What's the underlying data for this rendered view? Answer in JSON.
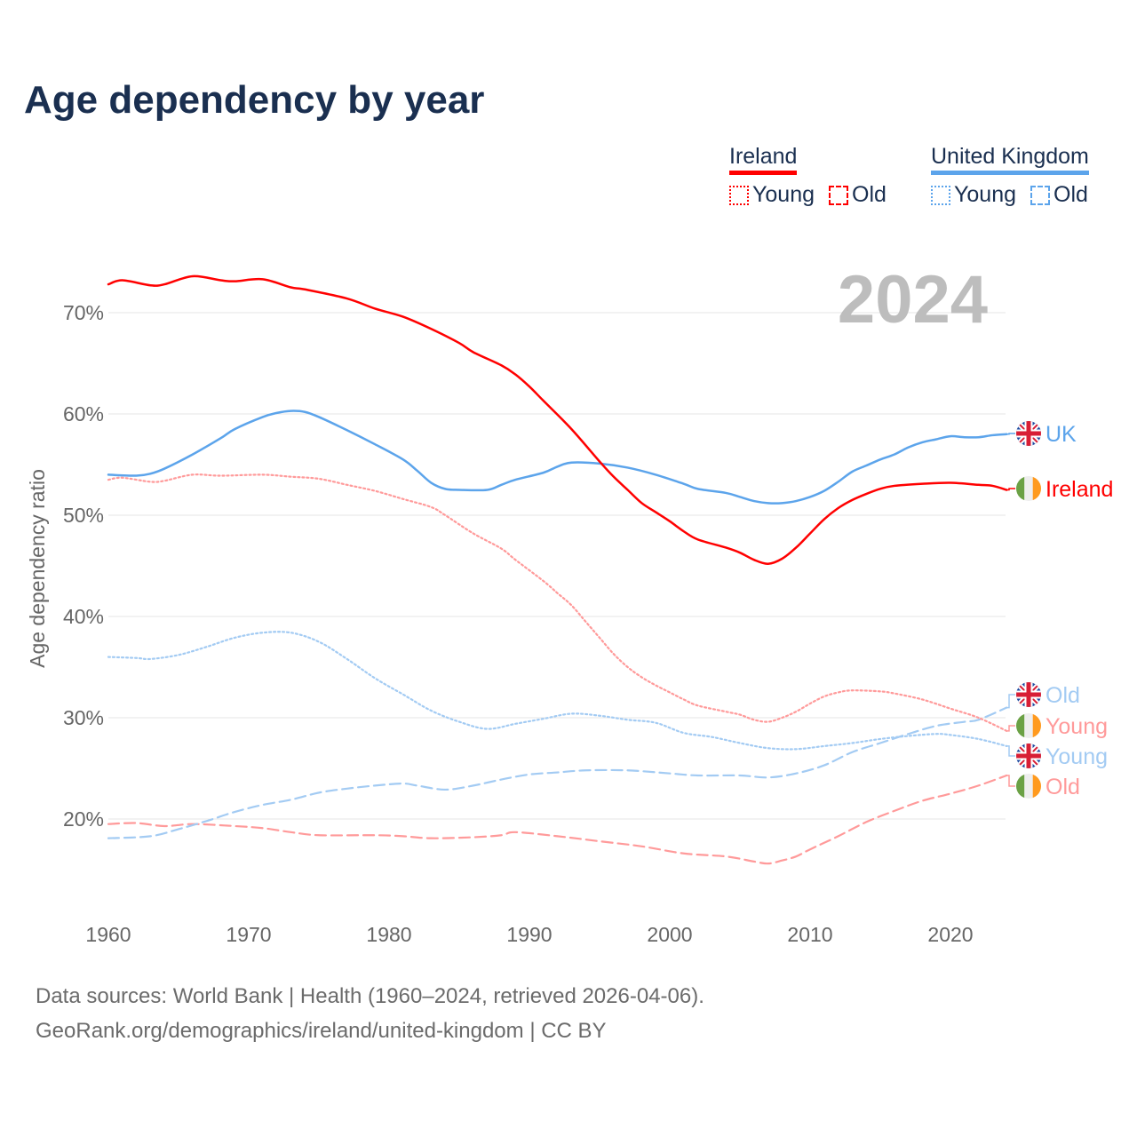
{
  "title": "Age dependency by year",
  "colors": {
    "ireland": "#ff0000",
    "ireland_light": "#ff9a9a",
    "uk": "#5ca4eb",
    "uk_light": "#a3cbf3",
    "text": "#1a2f50"
  },
  "legend": {
    "groups": [
      {
        "name": "Ireland",
        "items": [
          "Young",
          "Old"
        ]
      },
      {
        "name": "United Kingdom",
        "items": [
          "Young",
          "Old"
        ]
      }
    ]
  },
  "year_label": "2024",
  "end_labels": {
    "uk_total": "UK",
    "ie_total": "Ireland",
    "uk_old": "Old",
    "ie_young": "Young",
    "uk_young": "Young",
    "ie_old": "Old"
  },
  "footer": {
    "line1": "Data sources: World Bank | Health (1960–2024, retrieved 2026-04-06).",
    "line2": "GeoRank.org/demographics/ireland/united-kingdom | CC BY"
  },
  "chart_data": {
    "type": "line",
    "title": "Age dependency by year",
    "xlabel": "",
    "ylabel": "Age dependency ratio",
    "xlim": [
      1960,
      2024
    ],
    "ylim": [
      11,
      75
    ],
    "x_ticks": [
      "1960",
      "1970",
      "1980",
      "1990",
      "2000",
      "2010",
      "2020"
    ],
    "y_ticks": [
      "70%",
      "60%",
      "50%",
      "40%",
      "30%",
      "20%"
    ],
    "y_tick_values": [
      70,
      60,
      50,
      40,
      30,
      20
    ],
    "series": [
      {
        "id": "ie_total",
        "name": "Ireland",
        "style": "solid",
        "points": [
          [
            1960,
            72.8
          ],
          [
            1961,
            73.2
          ],
          [
            1963,
            72.7
          ],
          [
            1964,
            72.8
          ],
          [
            1966,
            73.6
          ],
          [
            1968,
            73.2
          ],
          [
            1969,
            73.1
          ],
          [
            1971,
            73.3
          ],
          [
            1973,
            72.5
          ],
          [
            1974,
            72.3
          ],
          [
            1977,
            71.4
          ],
          [
            1979,
            70.4
          ],
          [
            1981,
            69.6
          ],
          [
            1983,
            68.4
          ],
          [
            1985,
            67.0
          ],
          [
            1986,
            66.1
          ],
          [
            1988,
            64.8
          ],
          [
            1989,
            63.9
          ],
          [
            1990,
            62.7
          ],
          [
            1991,
            61.3
          ],
          [
            1993,
            58.5
          ],
          [
            1995,
            55.3
          ],
          [
            1996,
            53.8
          ],
          [
            1997,
            52.5
          ],
          [
            1998,
            51.2
          ],
          [
            1999,
            50.3
          ],
          [
            2000,
            49.4
          ],
          [
            2001,
            48.4
          ],
          [
            2002,
            47.6
          ],
          [
            2004,
            46.8
          ],
          [
            2005,
            46.3
          ],
          [
            2006,
            45.6
          ],
          [
            2007,
            45.2
          ],
          [
            2008,
            45.7
          ],
          [
            2009,
            46.8
          ],
          [
            2010,
            48.2
          ],
          [
            2011,
            49.6
          ],
          [
            2012,
            50.7
          ],
          [
            2013,
            51.5
          ],
          [
            2014,
            52.1
          ],
          [
            2015,
            52.6
          ],
          [
            2016,
            52.9
          ],
          [
            2018,
            53.1
          ],
          [
            2020,
            53.2
          ],
          [
            2022,
            53.0
          ],
          [
            2023,
            52.9
          ],
          [
            2024,
            52.5
          ]
        ]
      },
      {
        "id": "uk_total",
        "name": "United Kingdom",
        "style": "solid",
        "points": [
          [
            1960,
            54.0
          ],
          [
            1962,
            53.9
          ],
          [
            1963,
            54.1
          ],
          [
            1964,
            54.6
          ],
          [
            1966,
            56.0
          ],
          [
            1968,
            57.6
          ],
          [
            1969,
            58.5
          ],
          [
            1971,
            59.7
          ],
          [
            1972,
            60.1
          ],
          [
            1973,
            60.3
          ],
          [
            1974,
            60.2
          ],
          [
            1975,
            59.7
          ],
          [
            1977,
            58.4
          ],
          [
            1979,
            57.0
          ],
          [
            1981,
            55.5
          ],
          [
            1982,
            54.4
          ],
          [
            1983,
            53.2
          ],
          [
            1984,
            52.6
          ],
          [
            1985,
            52.5
          ],
          [
            1987,
            52.5
          ],
          [
            1988,
            53.0
          ],
          [
            1989,
            53.5
          ],
          [
            1991,
            54.2
          ],
          [
            1992,
            54.8
          ],
          [
            1993,
            55.2
          ],
          [
            1995,
            55.1
          ],
          [
            1997,
            54.7
          ],
          [
            1999,
            54.0
          ],
          [
            2001,
            53.1
          ],
          [
            2002,
            52.6
          ],
          [
            2004,
            52.2
          ],
          [
            2005,
            51.8
          ],
          [
            2006,
            51.4
          ],
          [
            2007,
            51.2
          ],
          [
            2008,
            51.2
          ],
          [
            2009,
            51.4
          ],
          [
            2010,
            51.8
          ],
          [
            2011,
            52.4
          ],
          [
            2012,
            53.3
          ],
          [
            2013,
            54.3
          ],
          [
            2014,
            54.9
          ],
          [
            2015,
            55.5
          ],
          [
            2016,
            56.0
          ],
          [
            2017,
            56.7
          ],
          [
            2018,
            57.2
          ],
          [
            2019,
            57.5
          ],
          [
            2020,
            57.8
          ],
          [
            2021,
            57.7
          ],
          [
            2022,
            57.7
          ],
          [
            2023,
            57.9
          ],
          [
            2024,
            58.0
          ]
        ]
      },
      {
        "id": "ie_young",
        "name": "Ireland Young",
        "style": "dotted",
        "points": [
          [
            1960,
            53.5
          ],
          [
            1961,
            53.7
          ],
          [
            1963,
            53.3
          ],
          [
            1964,
            53.4
          ],
          [
            1966,
            54.0
          ],
          [
            1968,
            53.9
          ],
          [
            1971,
            54.0
          ],
          [
            1973,
            53.8
          ],
          [
            1975,
            53.6
          ],
          [
            1977,
            53.0
          ],
          [
            1979,
            52.4
          ],
          [
            1981,
            51.6
          ],
          [
            1983,
            50.8
          ],
          [
            1984,
            50.0
          ],
          [
            1986,
            48.2
          ],
          [
            1988,
            46.7
          ],
          [
            1989,
            45.6
          ],
          [
            1991,
            43.5
          ],
          [
            1992,
            42.3
          ],
          [
            1993,
            41.1
          ],
          [
            1994,
            39.5
          ],
          [
            1995,
            37.9
          ],
          [
            1996,
            36.3
          ],
          [
            1997,
            35.0
          ],
          [
            1998,
            34.0
          ],
          [
            1999,
            33.2
          ],
          [
            2000,
            32.5
          ],
          [
            2001,
            31.8
          ],
          [
            2002,
            31.2
          ],
          [
            2004,
            30.6
          ],
          [
            2005,
            30.3
          ],
          [
            2006,
            29.8
          ],
          [
            2007,
            29.6
          ],
          [
            2008,
            30.0
          ],
          [
            2009,
            30.6
          ],
          [
            2010,
            31.4
          ],
          [
            2011,
            32.1
          ],
          [
            2012,
            32.5
          ],
          [
            2013,
            32.7
          ],
          [
            2015,
            32.6
          ],
          [
            2016,
            32.4
          ],
          [
            2018,
            31.8
          ],
          [
            2020,
            30.9
          ],
          [
            2022,
            30.0
          ],
          [
            2024,
            28.7
          ]
        ]
      },
      {
        "id": "uk_young",
        "name": "United Kingdom Young",
        "style": "dotted",
        "points": [
          [
            1960,
            36.0
          ],
          [
            1962,
            35.9
          ],
          [
            1963,
            35.8
          ],
          [
            1965,
            36.2
          ],
          [
            1967,
            37.0
          ],
          [
            1969,
            37.9
          ],
          [
            1971,
            38.4
          ],
          [
            1973,
            38.4
          ],
          [
            1975,
            37.5
          ],
          [
            1977,
            35.8
          ],
          [
            1979,
            33.9
          ],
          [
            1981,
            32.3
          ],
          [
            1983,
            30.7
          ],
          [
            1985,
            29.6
          ],
          [
            1987,
            28.9
          ],
          [
            1989,
            29.4
          ],
          [
            1991,
            29.9
          ],
          [
            1993,
            30.4
          ],
          [
            1995,
            30.2
          ],
          [
            1997,
            29.8
          ],
          [
            1999,
            29.5
          ],
          [
            2001,
            28.5
          ],
          [
            2003,
            28.1
          ],
          [
            2005,
            27.5
          ],
          [
            2007,
            27.0
          ],
          [
            2009,
            26.9
          ],
          [
            2011,
            27.2
          ],
          [
            2013,
            27.5
          ],
          [
            2015,
            27.9
          ],
          [
            2017,
            28.2
          ],
          [
            2019,
            28.4
          ],
          [
            2020,
            28.3
          ],
          [
            2022,
            27.9
          ],
          [
            2024,
            27.2
          ]
        ]
      },
      {
        "id": "ie_old",
        "name": "Ireland Old",
        "style": "dashed",
        "points": [
          [
            1960,
            19.5
          ],
          [
            1962,
            19.6
          ],
          [
            1964,
            19.3
          ],
          [
            1966,
            19.5
          ],
          [
            1969,
            19.3
          ],
          [
            1971,
            19.1
          ],
          [
            1973,
            18.7
          ],
          [
            1975,
            18.4
          ],
          [
            1979,
            18.4
          ],
          [
            1981,
            18.3
          ],
          [
            1983,
            18.1
          ],
          [
            1986,
            18.2
          ],
          [
            1988,
            18.4
          ],
          [
            1989,
            18.7
          ],
          [
            1992,
            18.3
          ],
          [
            1995,
            17.8
          ],
          [
            1998,
            17.3
          ],
          [
            2001,
            16.6
          ],
          [
            2004,
            16.3
          ],
          [
            2006,
            15.8
          ],
          [
            2007,
            15.6
          ],
          [
            2008,
            15.9
          ],
          [
            2009,
            16.3
          ],
          [
            2010,
            17.0
          ],
          [
            2012,
            18.3
          ],
          [
            2014,
            19.7
          ],
          [
            2016,
            20.8
          ],
          [
            2018,
            21.8
          ],
          [
            2020,
            22.5
          ],
          [
            2022,
            23.3
          ],
          [
            2024,
            24.3
          ]
        ]
      },
      {
        "id": "uk_old",
        "name": "United Kingdom Old",
        "style": "dashed",
        "points": [
          [
            1960,
            18.1
          ],
          [
            1963,
            18.3
          ],
          [
            1965,
            19.0
          ],
          [
            1967,
            19.8
          ],
          [
            1969,
            20.7
          ],
          [
            1971,
            21.4
          ],
          [
            1973,
            21.9
          ],
          [
            1975,
            22.6
          ],
          [
            1977,
            23.0
          ],
          [
            1979,
            23.3
          ],
          [
            1981,
            23.5
          ],
          [
            1982,
            23.3
          ],
          [
            1984,
            22.9
          ],
          [
            1986,
            23.3
          ],
          [
            1988,
            23.9
          ],
          [
            1990,
            24.4
          ],
          [
            1992,
            24.6
          ],
          [
            1994,
            24.8
          ],
          [
            1997,
            24.8
          ],
          [
            2000,
            24.5
          ],
          [
            2002,
            24.3
          ],
          [
            2005,
            24.3
          ],
          [
            2007,
            24.1
          ],
          [
            2009,
            24.5
          ],
          [
            2011,
            25.3
          ],
          [
            2013,
            26.6
          ],
          [
            2015,
            27.5
          ],
          [
            2017,
            28.4
          ],
          [
            2019,
            29.2
          ],
          [
            2021,
            29.6
          ],
          [
            2022,
            29.8
          ],
          [
            2024,
            31.0
          ]
        ]
      }
    ]
  }
}
